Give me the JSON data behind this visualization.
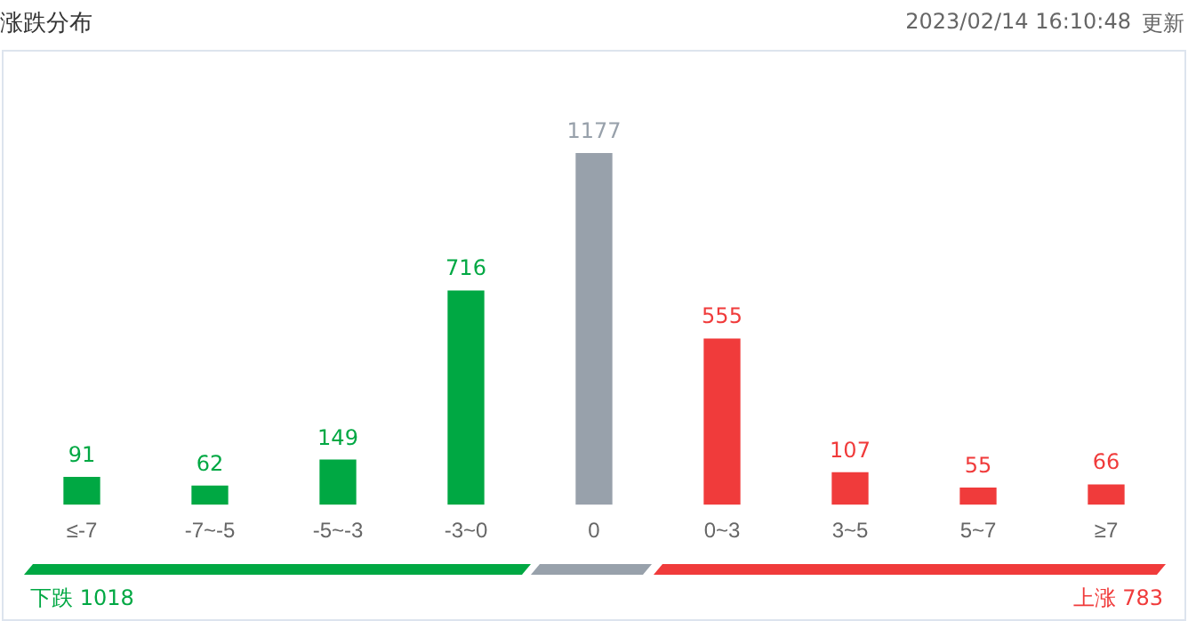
{
  "chart_data": {
    "type": "bar",
    "title": "涨跌分布",
    "subtitle": "2023/02/14 16:10:48",
    "categories": [
      "≤-7",
      "-7~-5",
      "-5~-3",
      "-3~0",
      "0",
      "0~3",
      "3~5",
      "5~7",
      "≥7"
    ],
    "values": [
      91,
      62,
      149,
      716,
      1177,
      555,
      107,
      55,
      66
    ],
    "colors": [
      "#00a843",
      "#00a843",
      "#00a843",
      "#00a843",
      "#98a1ab",
      "#f03b3b",
      "#f03b3b",
      "#f03b3b",
      "#f03b3b"
    ],
    "data_labels": true,
    "grid": false,
    "legend": false,
    "annotations": [
      "更新",
      "下跌 1018",
      "上涨 783"
    ]
  }
}
